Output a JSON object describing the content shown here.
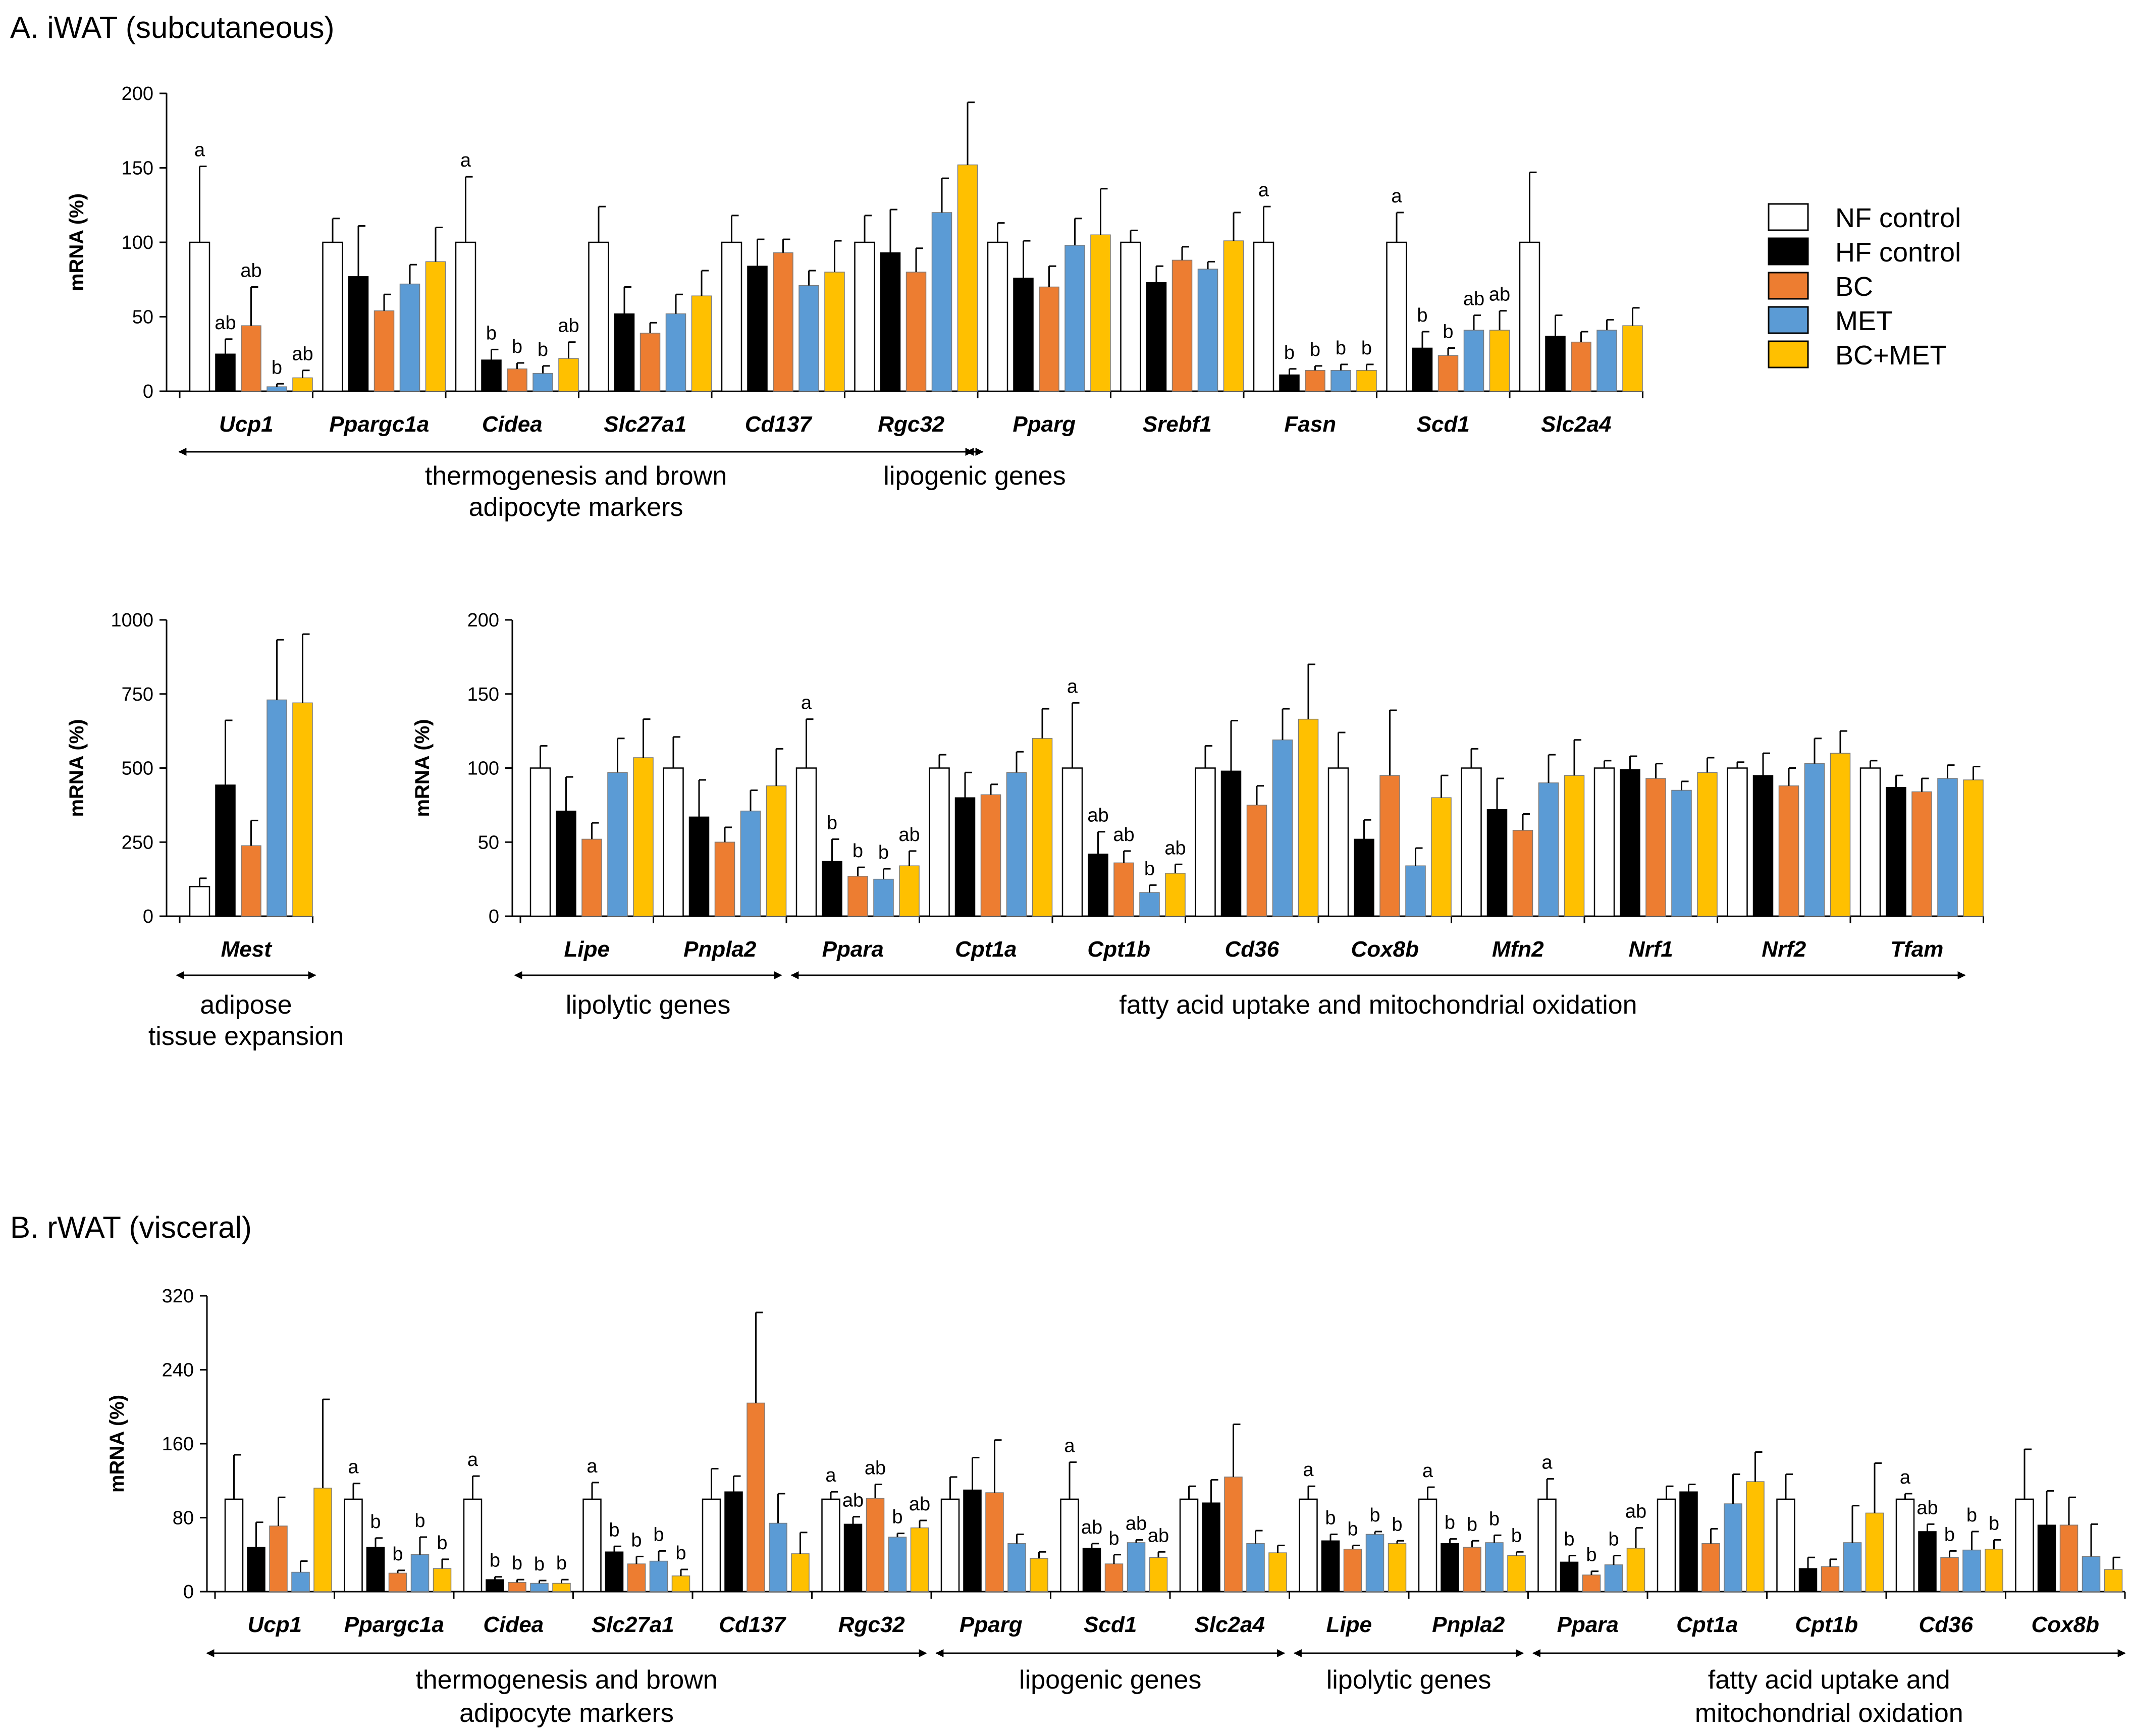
{
  "series_names": [
    "NF control",
    "HF control",
    "BC",
    "MET",
    "BC+MET"
  ],
  "series_colors": [
    "#ffffff",
    "#000000",
    "#ED7D31",
    "#5B9BD5",
    "#FFC000"
  ],
  "section_titles": {
    "a": "A. iWAT (subcutaneous)",
    "b": "B. rWAT (visceral)"
  },
  "chart_data": [
    {
      "type": "bar",
      "title": "A. iWAT (subcutaneous)",
      "ylabel": "mRNA (%)",
      "ylim": [
        0,
        200
      ],
      "yticks": [
        0,
        50,
        100,
        150,
        200
      ],
      "categories": [
        "Ucp1",
        "Ppargc1a",
        "Cidea",
        "Slc27a1",
        "Cd137",
        "Rgc32",
        "Pparg",
        "Srebf1",
        "Fasn",
        "Scd1",
        "Slc2a4"
      ],
      "series": [
        {
          "name": "NF control",
          "values": [
            100,
            100,
            100,
            100,
            100,
            100,
            100,
            100,
            100,
            100,
            100
          ],
          "errors": [
            51,
            16,
            44,
            24,
            18,
            18,
            13,
            8,
            24,
            20,
            47
          ]
        },
        {
          "name": "HF control",
          "values": [
            25,
            77,
            21,
            52,
            84,
            93,
            76,
            73,
            11,
            29,
            37
          ],
          "errors": [
            10,
            34,
            7,
            18,
            18,
            29,
            25,
            11,
            4,
            11,
            14
          ]
        },
        {
          "name": "BC",
          "values": [
            44,
            54,
            15,
            39,
            93,
            80,
            70,
            88,
            14,
            24,
            33
          ],
          "errors": [
            26,
            11,
            4,
            7,
            9,
            16,
            14,
            9,
            3,
            5,
            7
          ]
        },
        {
          "name": "MET",
          "values": [
            3,
            72,
            12,
            52,
            71,
            120,
            98,
            82,
            14,
            41,
            41
          ],
          "errors": [
            2,
            13,
            5,
            13,
            10,
            23,
            18,
            5,
            4,
            10,
            7
          ]
        },
        {
          "name": "BC+MET",
          "values": [
            9,
            87,
            22,
            64,
            80,
            152,
            105,
            101,
            14,
            41,
            44
          ],
          "errors": [
            5,
            23,
            11,
            17,
            21,
            42,
            31,
            19,
            4,
            13,
            12
          ]
        }
      ],
      "sig_labels": [
        [
          "a",
          "ab",
          "ab",
          "b",
          "ab"
        ],
        [
          "",
          "",
          "",
          "",
          ""
        ],
        [
          "a",
          "b",
          "b",
          "b",
          "ab"
        ],
        [
          "",
          "",
          "",
          "",
          ""
        ],
        [
          "",
          "",
          "",
          "",
          ""
        ],
        [
          "",
          "",
          "",
          "",
          ""
        ],
        [
          "",
          "",
          "",
          "",
          ""
        ],
        [
          "",
          "",
          "",
          "",
          ""
        ],
        [
          "a",
          "b",
          "b",
          "b",
          "b"
        ],
        [
          "a",
          "b",
          "b",
          "ab",
          "ab"
        ],
        [
          "",
          "",
          "",
          "",
          ""
        ]
      ],
      "groups": [
        {
          "label_lines": [
            "thermogenesis and brown",
            "adipocyte markers"
          ],
          "from": 0,
          "to": 5
        },
        {
          "label_lines": [
            "lipogenic genes"
          ],
          "from": 6,
          "to": 10
        }
      ]
    },
    {
      "type": "bar",
      "title": "",
      "ylabel": "mRNA (%)",
      "ylim": [
        0,
        1000
      ],
      "yticks": [
        0,
        250,
        500,
        750,
        1000
      ],
      "categories": [
        "Mest"
      ],
      "series": [
        {
          "name": "NF control",
          "values": [
            100
          ],
          "errors": [
            28
          ]
        },
        {
          "name": "HF control",
          "values": [
            443
          ],
          "errors": [
            218
          ]
        },
        {
          "name": "BC",
          "values": [
            238
          ],
          "errors": [
            85
          ]
        },
        {
          "name": "MET",
          "values": [
            730
          ],
          "errors": [
            203
          ]
        },
        {
          "name": "BC+MET",
          "values": [
            720
          ],
          "errors": [
            232
          ]
        }
      ],
      "sig_labels": [
        [
          "",
          "",
          "",
          "",
          ""
        ]
      ],
      "groups": [
        {
          "label_lines": [
            "adipose",
            "tissue expansion"
          ],
          "from": 0,
          "to": 0
        }
      ]
    },
    {
      "type": "bar",
      "title": "",
      "ylabel": "mRNA (%)",
      "ylim": [
        0,
        200
      ],
      "yticks": [
        0,
        50,
        100,
        150,
        200
      ],
      "categories": [
        "Lipe",
        "Pnpla2",
        "Ppara",
        "Cpt1a",
        "Cpt1b",
        "Cd36",
        "Cox8b",
        "Mfn2",
        "Nrf1",
        "Nrf2",
        "Tfam"
      ],
      "series": [
        {
          "name": "NF control",
          "values": [
            100,
            100,
            100,
            100,
            100,
            100,
            100,
            100,
            100,
            100,
            100
          ],
          "errors": [
            15,
            21,
            33,
            9,
            44,
            15,
            24,
            13,
            5,
            4,
            5
          ]
        },
        {
          "name": "HF control",
          "values": [
            71,
            67,
            37,
            80,
            42,
            98,
            52,
            72,
            99,
            95,
            87
          ],
          "errors": [
            23,
            25,
            15,
            17,
            15,
            34,
            13,
            21,
            9,
            15,
            8
          ]
        },
        {
          "name": "BC",
          "values": [
            52,
            50,
            27,
            82,
            36,
            75,
            95,
            58,
            93,
            88,
            84
          ],
          "errors": [
            11,
            10,
            6,
            7,
            8,
            13,
            44,
            11,
            10,
            12,
            9
          ]
        },
        {
          "name": "MET",
          "values": [
            97,
            71,
            25,
            97,
            16,
            119,
            34,
            90,
            85,
            103,
            93
          ],
          "errors": [
            23,
            14,
            7,
            14,
            5,
            21,
            12,
            19,
            6,
            17,
            9
          ]
        },
        {
          "name": "BC+MET",
          "values": [
            107,
            88,
            34,
            120,
            29,
            133,
            80,
            95,
            97,
            110,
            92
          ],
          "errors": [
            26,
            25,
            10,
            20,
            6,
            37,
            15,
            24,
            10,
            15,
            9
          ]
        }
      ],
      "sig_labels": [
        [
          "",
          "",
          "",
          "",
          ""
        ],
        [
          "",
          "",
          "",
          "",
          ""
        ],
        [
          "a",
          "b",
          "b",
          "b",
          "ab"
        ],
        [
          "",
          "",
          "",
          "",
          ""
        ],
        [
          "a",
          "ab",
          "ab",
          "b",
          "ab"
        ],
        [
          "",
          "",
          "",
          "",
          ""
        ],
        [
          "",
          "",
          "",
          "",
          ""
        ],
        [
          "",
          "",
          "",
          "",
          ""
        ],
        [
          "",
          "",
          "",
          "",
          ""
        ],
        [
          "",
          "",
          "",
          "",
          ""
        ],
        [
          "",
          "",
          "",
          "",
          ""
        ]
      ],
      "groups": [
        {
          "label_lines": [
            "lipolytic genes"
          ],
          "from": 0,
          "to": 1
        },
        {
          "label_lines": [
            "fatty acid uptake and mitochondrial oxidation"
          ],
          "from": 2,
          "to": 10
        }
      ]
    },
    {
      "type": "bar",
      "title": "B. rWAT (visceral)",
      "ylabel": "mRNA (%)",
      "ylim": [
        0,
        320
      ],
      "yticks": [
        0,
        80,
        160,
        240,
        320
      ],
      "categories": [
        "Ucp1",
        "Ppargc1a",
        "Cidea",
        "Slc27a1",
        "Cd137",
        "Rgc32",
        "Pparg",
        "Scd1",
        "Slc2a4",
        "Lipe",
        "Pnpla2",
        "Ppara",
        "Cpt1a",
        "Cpt1b",
        "Cd36",
        "Cox8b"
      ],
      "series": [
        {
          "name": "NF control",
          "values": [
            100,
            100,
            100,
            100,
            100,
            100,
            100,
            100,
            100,
            100,
            100,
            100,
            100,
            100,
            100,
            100
          ],
          "errors": [
            48,
            17,
            25,
            18,
            33,
            8,
            24,
            40,
            14,
            14,
            13,
            22,
            14,
            27,
            6,
            54
          ]
        },
        {
          "name": "HF control",
          "values": [
            48,
            48,
            13,
            43,
            108,
            73,
            110,
            47,
            96,
            55,
            52,
            32,
            108,
            25,
            65,
            72
          ],
          "errors": [
            27,
            10,
            3,
            6,
            17,
            8,
            35,
            5,
            25,
            7,
            5,
            7,
            8,
            12,
            8,
            37
          ]
        },
        {
          "name": "BC",
          "values": [
            71,
            20,
            10,
            30,
            204,
            101,
            107,
            30,
            124,
            46,
            48,
            18,
            52,
            27,
            37,
            72
          ],
          "errors": [
            31,
            3,
            3,
            8,
            98,
            15,
            57,
            10,
            57,
            4,
            7,
            4,
            16,
            8,
            7,
            30
          ]
        },
        {
          "name": "MET",
          "values": [
            21,
            40,
            9,
            33,
            74,
            59,
            52,
            53,
            52,
            62,
            53,
            29,
            95,
            53,
            45,
            38
          ],
          "errors": [
            12,
            19,
            3,
            11,
            32,
            4,
            10,
            3,
            14,
            3,
            8,
            10,
            32,
            40,
            20,
            35
          ]
        },
        {
          "name": "BC+MET",
          "values": [
            112,
            25,
            9,
            17,
            41,
            69,
            36,
            37,
            42,
            52,
            39,
            47,
            119,
            85,
            46,
            24
          ],
          "errors": [
            96,
            10,
            4,
            7,
            23,
            8,
            7,
            6,
            8,
            3,
            4,
            22,
            32,
            54,
            10,
            13
          ]
        }
      ],
      "sig_labels": [
        [
          "",
          "",
          "",
          "",
          ""
        ],
        [
          "a",
          "b",
          "b",
          "b",
          "b"
        ],
        [
          "a",
          "b",
          "b",
          "b",
          "b"
        ],
        [
          "a",
          "b",
          "b",
          "b",
          "b"
        ],
        [
          "",
          "",
          "",
          "",
          ""
        ],
        [
          "a",
          "ab",
          "ab",
          "b",
          "ab"
        ],
        [
          "",
          "",
          "",
          "",
          ""
        ],
        [
          "a",
          "ab",
          "b",
          "ab",
          "ab"
        ],
        [
          "",
          "",
          "",
          "",
          ""
        ],
        [
          "a",
          "b",
          "b",
          "b",
          "b"
        ],
        [
          "a",
          "b",
          "b",
          "b",
          "b"
        ],
        [
          "a",
          "b",
          "b",
          "b",
          "ab"
        ],
        [
          "",
          "",
          "",
          "",
          ""
        ],
        [
          "",
          "",
          "",
          "",
          ""
        ],
        [
          "a",
          "ab",
          "b",
          "b",
          "b"
        ],
        [
          "",
          "",
          "",
          "",
          ""
        ]
      ],
      "groups": [
        {
          "label_lines": [
            "thermogenesis and brown",
            "adipocyte markers"
          ],
          "from": 0,
          "to": 5
        },
        {
          "label_lines": [
            "lipogenic genes"
          ],
          "from": 6,
          "to": 8
        },
        {
          "label_lines": [
            "lipolytic genes"
          ],
          "from": 9,
          "to": 10
        },
        {
          "label_lines": [
            "fatty acid uptake and",
            "mitochondrial oxidation"
          ],
          "from": 11,
          "to": 15
        }
      ]
    }
  ]
}
